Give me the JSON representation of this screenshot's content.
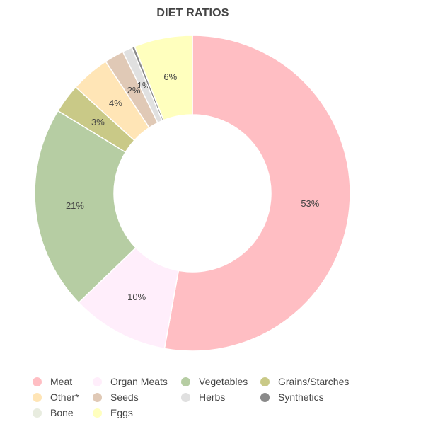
{
  "chart_data": {
    "type": "pie",
    "donut": true,
    "title": "DIET RATIOS",
    "slices": [
      {
        "label": "Meat",
        "value": 53,
        "display": "53%",
        "color": "#ffbec3"
      },
      {
        "label": "Organ Meats",
        "value": 10,
        "display": "10%",
        "color": "#ffeefb"
      },
      {
        "label": "Vegetables",
        "value": 21,
        "display": "21%",
        "color": "#b6cda3"
      },
      {
        "label": "Grains/Starches",
        "value": 3,
        "display": "3%",
        "color": "#c9c987"
      },
      {
        "label": "Other*",
        "value": 4,
        "display": "4%",
        "color": "#ffe5b6"
      },
      {
        "label": "Seeds",
        "value": 2,
        "display": "2%",
        "color": "#e0c9b6"
      },
      {
        "label": "Herbs",
        "value": 1,
        "display": "1%",
        "color": "#e0e0e0"
      },
      {
        "label": "Synthetics",
        "value": 0.3,
        "display": "",
        "color": "#8a8a8a"
      },
      {
        "label": "Bone",
        "value": 0,
        "display": "",
        "color": "#e8ecdf"
      },
      {
        "label": "Eggs",
        "value": 6,
        "display": "6%",
        "color": "#ffffbe"
      }
    ],
    "legend_position": "bottom",
    "legend_rows": [
      [
        "Meat",
        "Organ Meats",
        "Vegetables",
        "Grains/Starches"
      ],
      [
        "Other*",
        "Seeds",
        "Herbs",
        "Synthetics"
      ],
      [
        "Bone",
        "Eggs"
      ]
    ]
  }
}
